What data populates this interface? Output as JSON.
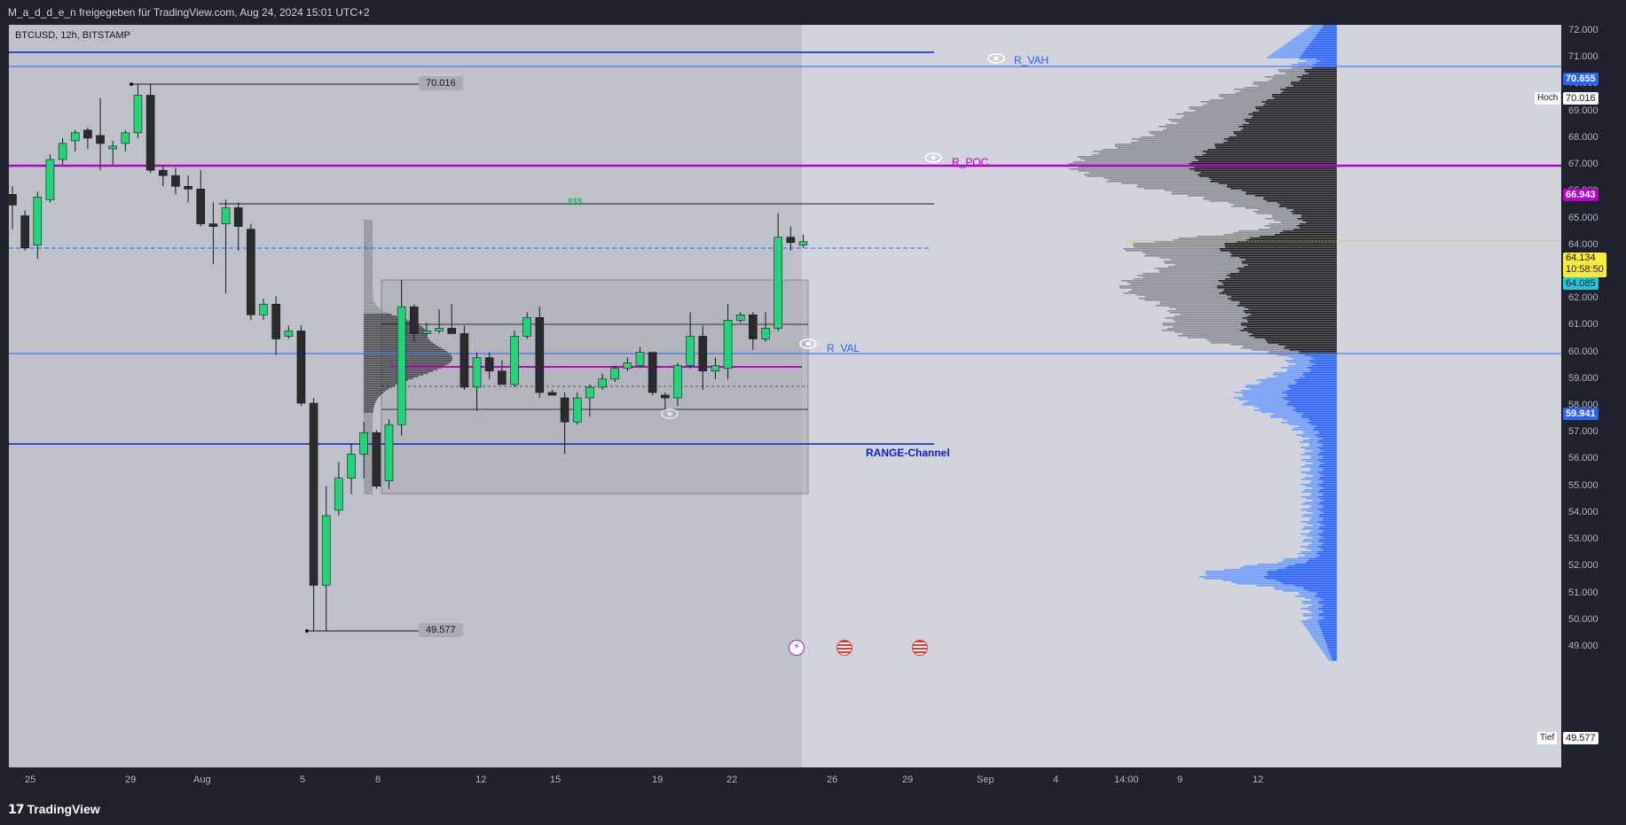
{
  "header": {
    "title": "M_a_d_d_e_n freigegeben für TradingView.com, Aug 24, 2024 15:01 UTC+2"
  },
  "symbol": {
    "info": "BTCUSD, 12h, BITSTAMP"
  },
  "price_axis": {
    "ticks": [
      "72.000",
      "71.000",
      "70.000",
      "69.000",
      "68.000",
      "67.000",
      "66.000",
      "65.000",
      "64.000",
      "63.000",
      "62.000",
      "61.000",
      "60.000",
      "59.000",
      "58.000",
      "57.000",
      "56.000",
      "55.000",
      "54.000",
      "53.000",
      "52.000",
      "51.000",
      "50.000",
      "49.000"
    ],
    "tags": {
      "vah": "70.655",
      "high": "70.016",
      "high_label": "Hoch",
      "poc": "66.943",
      "last": "64.134",
      "countdown": "10:58:50",
      "current": "64.085",
      "val": "59.941",
      "low": "49.577",
      "low_label": "Tief"
    }
  },
  "time_axis": {
    "ticks": [
      "25",
      "29",
      "Aug",
      "5",
      "8",
      "12",
      "15",
      "19",
      "22",
      "26",
      "29",
      "Sep",
      "4",
      "14:00",
      "9",
      "12"
    ]
  },
  "annotations": {
    "r_vah": "R_VAH",
    "r_poc": "R_POC",
    "r_val": "R_VAL",
    "range": "RANGE-Channel",
    "dollars": "$$$",
    "high_box": "70.016",
    "low_box": "49.577"
  },
  "footer": {
    "brand": "TradingView"
  },
  "colors": {
    "up": "#22d37a",
    "down": "#2b2b2e",
    "blue": "#2962ff",
    "navy": "#0d1ecf",
    "purple": "#b400c8",
    "yellow": "#ffeb3b"
  },
  "chart_data": {
    "type": "candlestick",
    "symbol": "BTCUSD",
    "interval": "12h",
    "exchange": "BITSTAMP",
    "ylim": [
      48500,
      72500
    ],
    "levels": [
      {
        "name": "R_VAH",
        "price": 70655
      },
      {
        "name": "R_POC",
        "price": 66943
      },
      {
        "name": "R_VAL",
        "price": 59941
      },
      {
        "name": "RANGE-Channel",
        "price": 56600
      },
      {
        "name": "$$$",
        "price": 65700
      }
    ],
    "high": 70016,
    "low": 49577,
    "last": 64134,
    "candles": [
      {
        "o": 65900,
        "h": 66200,
        "l": 64600,
        "c": 65500
      },
      {
        "o": 65100,
        "h": 65300,
        "l": 63800,
        "c": 63900
      },
      {
        "o": 64000,
        "h": 66000,
        "l": 63500,
        "c": 65800
      },
      {
        "o": 65700,
        "h": 67400,
        "l": 65600,
        "c": 67200
      },
      {
        "o": 67200,
        "h": 68000,
        "l": 67000,
        "c": 67800
      },
      {
        "o": 67900,
        "h": 68300,
        "l": 67500,
        "c": 68200
      },
      {
        "o": 68300,
        "h": 68400,
        "l": 67600,
        "c": 68000
      },
      {
        "o": 68100,
        "h": 69500,
        "l": 66800,
        "c": 67800
      },
      {
        "o": 67600,
        "h": 67900,
        "l": 67000,
        "c": 67700
      },
      {
        "o": 67800,
        "h": 68300,
        "l": 67500,
        "c": 68200
      },
      {
        "o": 68200,
        "h": 70000,
        "l": 68000,
        "c": 69600
      },
      {
        "o": 69600,
        "h": 70016,
        "l": 66700,
        "c": 66800
      },
      {
        "o": 66800,
        "h": 67000,
        "l": 66200,
        "c": 66600
      },
      {
        "o": 66600,
        "h": 66900,
        "l": 65900,
        "c": 66200
      },
      {
        "o": 66200,
        "h": 66600,
        "l": 65600,
        "c": 66100
      },
      {
        "o": 66100,
        "h": 66800,
        "l": 64700,
        "c": 64800
      },
      {
        "o": 64800,
        "h": 65600,
        "l": 63300,
        "c": 64700
      },
      {
        "o": 64800,
        "h": 65700,
        "l": 62200,
        "c": 65400
      },
      {
        "o": 65400,
        "h": 65600,
        "l": 63800,
        "c": 64700
      },
      {
        "o": 64600,
        "h": 64800,
        "l": 61200,
        "c": 61400
      },
      {
        "o": 61400,
        "h": 62000,
        "l": 61200,
        "c": 61800
      },
      {
        "o": 61800,
        "h": 62100,
        "l": 59900,
        "c": 60500
      },
      {
        "o": 60600,
        "h": 61000,
        "l": 60500,
        "c": 60800
      },
      {
        "o": 60800,
        "h": 61000,
        "l": 58000,
        "c": 58100
      },
      {
        "o": 58100,
        "h": 58300,
        "l": 49577,
        "c": 51300
      },
      {
        "o": 51300,
        "h": 55000,
        "l": 49577,
        "c": 53900
      },
      {
        "o": 54100,
        "h": 55900,
        "l": 53900,
        "c": 55300
      },
      {
        "o": 55300,
        "h": 56600,
        "l": 54700,
        "c": 56200
      },
      {
        "o": 56200,
        "h": 57400,
        "l": 55300,
        "c": 57000
      },
      {
        "o": 57000,
        "h": 57100,
        "l": 54900,
        "c": 55000
      },
      {
        "o": 55200,
        "h": 57500,
        "l": 54900,
        "c": 57300
      },
      {
        "o": 57300,
        "h": 62700,
        "l": 56900,
        "c": 61700
      },
      {
        "o": 61700,
        "h": 61800,
        "l": 60400,
        "c": 60700
      },
      {
        "o": 60700,
        "h": 61100,
        "l": 60600,
        "c": 60800
      },
      {
        "o": 60800,
        "h": 61600,
        "l": 60700,
        "c": 60900
      },
      {
        "o": 60900,
        "h": 61800,
        "l": 60700,
        "c": 60700
      },
      {
        "o": 60700,
        "h": 61000,
        "l": 58600,
        "c": 58700
      },
      {
        "o": 58700,
        "h": 60000,
        "l": 57800,
        "c": 59800
      },
      {
        "o": 59800,
        "h": 60000,
        "l": 59000,
        "c": 59300
      },
      {
        "o": 59300,
        "h": 59700,
        "l": 58800,
        "c": 58800
      },
      {
        "o": 58800,
        "h": 60800,
        "l": 58700,
        "c": 60600
      },
      {
        "o": 60600,
        "h": 61500,
        "l": 60500,
        "c": 61300
      },
      {
        "o": 61300,
        "h": 61700,
        "l": 58300,
        "c": 58500
      },
      {
        "o": 58500,
        "h": 58600,
        "l": 58400,
        "c": 58400
      },
      {
        "o": 58300,
        "h": 58500,
        "l": 56200,
        "c": 57400
      },
      {
        "o": 57400,
        "h": 58500,
        "l": 57300,
        "c": 58300
      },
      {
        "o": 58300,
        "h": 58800,
        "l": 57600,
        "c": 58700
      },
      {
        "o": 58700,
        "h": 59200,
        "l": 58600,
        "c": 59000
      },
      {
        "o": 59000,
        "h": 59500,
        "l": 58900,
        "c": 59400
      },
      {
        "o": 59400,
        "h": 59800,
        "l": 59300,
        "c": 59600
      },
      {
        "o": 59500,
        "h": 60200,
        "l": 59400,
        "c": 60000
      },
      {
        "o": 60000,
        "h": 60000,
        "l": 58400,
        "c": 58500
      },
      {
        "o": 58400,
        "h": 58500,
        "l": 57800,
        "c": 58300
      },
      {
        "o": 58300,
        "h": 59600,
        "l": 58000,
        "c": 59500
      },
      {
        "o": 59500,
        "h": 61500,
        "l": 59400,
        "c": 60600
      },
      {
        "o": 60600,
        "h": 61000,
        "l": 58600,
        "c": 59300
      },
      {
        "o": 59300,
        "h": 59800,
        "l": 59000,
        "c": 59500
      },
      {
        "o": 59400,
        "h": 61800,
        "l": 59000,
        "c": 61200
      },
      {
        "o": 61200,
        "h": 61500,
        "l": 61100,
        "c": 61400
      },
      {
        "o": 61400,
        "h": 61500,
        "l": 60100,
        "c": 60500
      },
      {
        "o": 60500,
        "h": 61500,
        "l": 60400,
        "c": 60900
      },
      {
        "o": 60900,
        "h": 65200,
        "l": 60800,
        "c": 64300
      },
      {
        "o": 64300,
        "h": 64700,
        "l": 63800,
        "c": 64100
      },
      {
        "o": 64000,
        "h": 64400,
        "l": 63900,
        "c": 64134
      }
    ]
  }
}
